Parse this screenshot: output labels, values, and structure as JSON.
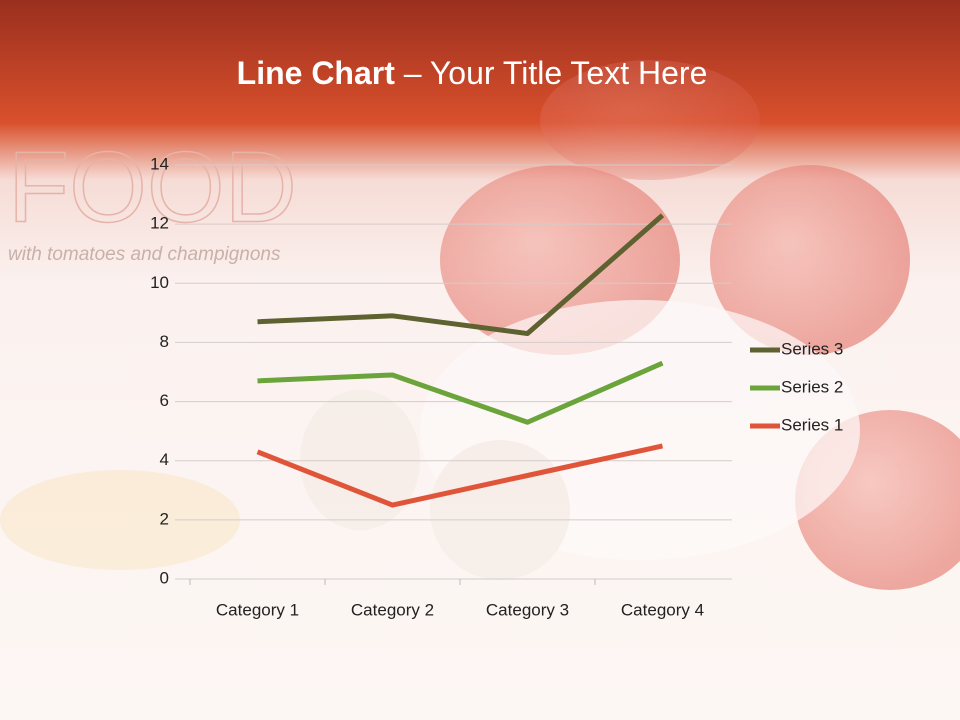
{
  "slide": {
    "logo": "FOOD",
    "tagline": "with tomatoes and champignons"
  },
  "chart_data": {
    "type": "line",
    "title": [
      "Line Chart",
      "– Your Title Text Here"
    ],
    "categories": [
      "Category 1",
      "Category 2",
      "Category 3",
      "Category 4"
    ],
    "series": [
      {
        "name": "Series 1",
        "color": "#e0553a",
        "values": [
          4.3,
          2.5,
          3.5,
          4.5
        ]
      },
      {
        "name": "Series 2",
        "color": "#6aa43a",
        "values": [
          6.7,
          6.9,
          5.3,
          7.3
        ]
      },
      {
        "name": "Series 3",
        "color": "#5e6130",
        "values": [
          8.7,
          8.9,
          8.3,
          12.3
        ]
      }
    ],
    "ylim": [
      0,
      14
    ],
    "yticks": [
      0,
      2,
      4,
      6,
      8,
      10,
      12,
      14
    ],
    "grid": true,
    "legend": "right"
  }
}
